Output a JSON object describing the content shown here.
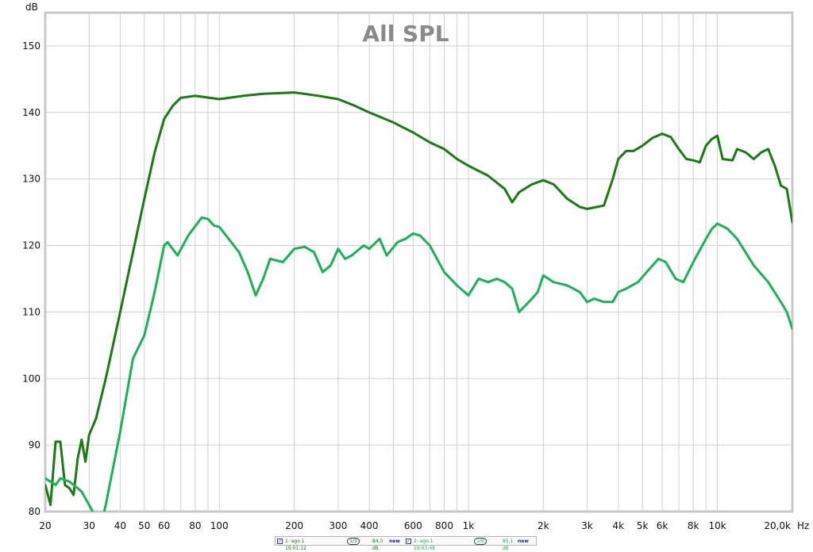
{
  "chart_data": {
    "type": "line",
    "title": "All SPL",
    "y_unit": "dB",
    "x_unit": "Hz",
    "x_scale": "log",
    "xlim": [
      20,
      20000
    ],
    "ylim": [
      80,
      155
    ],
    "grid": true,
    "y_ticks": [
      80,
      90,
      100,
      110,
      120,
      130,
      140,
      150
    ],
    "x_tick_labels": [
      {
        "value": 20,
        "label": "20"
      },
      {
        "value": 30,
        "label": "30"
      },
      {
        "value": 40,
        "label": "40"
      },
      {
        "value": 50,
        "label": "50"
      },
      {
        "value": 60,
        "label": "60"
      },
      {
        "value": 80,
        "label": "80"
      },
      {
        "value": 100,
        "label": "100"
      },
      {
        "value": 200,
        "label": "200"
      },
      {
        "value": 300,
        "label": "300"
      },
      {
        "value": 400,
        "label": "400"
      },
      {
        "value": 600,
        "label": "600"
      },
      {
        "value": 800,
        "label": "800"
      },
      {
        "value": 1000,
        "label": "1k"
      },
      {
        "value": 2000,
        "label": "2k"
      },
      {
        "value": 3000,
        "label": "3k"
      },
      {
        "value": 4000,
        "label": "4k"
      },
      {
        "value": 5000,
        "label": "5k"
      },
      {
        "value": 6000,
        "label": "6k"
      },
      {
        "value": 8000,
        "label": "8k"
      },
      {
        "value": 10000,
        "label": "10k"
      },
      {
        "value": 20000,
        "label": "20,0k"
      }
    ],
    "series": [
      {
        "color": "#1a7a14",
        "points": [
          [
            20,
            84
          ],
          [
            21,
            81
          ],
          [
            22,
            90.5
          ],
          [
            23,
            90.5
          ],
          [
            24,
            84
          ],
          [
            25,
            83.5
          ],
          [
            26,
            82.5
          ],
          [
            27,
            88
          ],
          [
            28,
            90.8
          ],
          [
            29,
            87.5
          ],
          [
            30,
            91.5
          ],
          [
            32,
            94
          ],
          [
            35,
            100
          ],
          [
            40,
            110
          ],
          [
            45,
            119
          ],
          [
            50,
            127
          ],
          [
            55,
            134
          ],
          [
            60,
            139
          ],
          [
            65,
            141
          ],
          [
            70,
            142.2
          ],
          [
            80,
            142.5
          ],
          [
            100,
            142
          ],
          [
            125,
            142.5
          ],
          [
            150,
            142.8
          ],
          [
            200,
            143
          ],
          [
            250,
            142.5
          ],
          [
            300,
            142
          ],
          [
            350,
            141
          ],
          [
            400,
            140
          ],
          [
            500,
            138.5
          ],
          [
            600,
            137
          ],
          [
            700,
            135.5
          ],
          [
            800,
            134.5
          ],
          [
            900,
            133
          ],
          [
            1000,
            132
          ],
          [
            1200,
            130.5
          ],
          [
            1400,
            128.5
          ],
          [
            1500,
            126.5
          ],
          [
            1600,
            128
          ],
          [
            1800,
            129.2
          ],
          [
            2000,
            129.8
          ],
          [
            2200,
            129.2
          ],
          [
            2500,
            127
          ],
          [
            2800,
            125.8
          ],
          [
            3000,
            125.5
          ],
          [
            3500,
            126
          ],
          [
            3800,
            130
          ],
          [
            4000,
            133
          ],
          [
            4300,
            134.2
          ],
          [
            4600,
            134.2
          ],
          [
            5000,
            135
          ],
          [
            5500,
            136.2
          ],
          [
            6000,
            136.8
          ],
          [
            6500,
            136.3
          ],
          [
            7000,
            134.5
          ],
          [
            7500,
            133
          ],
          [
            8000,
            132.8
          ],
          [
            8500,
            132.5
          ],
          [
            9000,
            135
          ],
          [
            9500,
            136
          ],
          [
            10000,
            136.5
          ],
          [
            10500,
            133
          ],
          [
            11500,
            132.8
          ],
          [
            12000,
            134.5
          ],
          [
            13000,
            134
          ],
          [
            14000,
            133
          ],
          [
            15000,
            134
          ],
          [
            16000,
            134.5
          ],
          [
            17000,
            132
          ],
          [
            18000,
            129
          ],
          [
            19000,
            128.5
          ],
          [
            20000,
            123.5
          ]
        ]
      },
      {
        "color": "#1cb05a",
        "points": [
          [
            20,
            85
          ],
          [
            21,
            84.5
          ],
          [
            22,
            84
          ],
          [
            23,
            85
          ],
          [
            25,
            84.5
          ],
          [
            26,
            84
          ],
          [
            27,
            83.5
          ],
          [
            28,
            83
          ],
          [
            30,
            81
          ],
          [
            31,
            80
          ],
          [
            33,
            78
          ],
          [
            34,
            79
          ],
          [
            35,
            81
          ],
          [
            40,
            92
          ],
          [
            45,
            103
          ],
          [
            50,
            106.5
          ],
          [
            55,
            113
          ],
          [
            60,
            120
          ],
          [
            62,
            120.5
          ],
          [
            68,
            118.5
          ],
          [
            75,
            121.5
          ],
          [
            85,
            124.2
          ],
          [
            90,
            124
          ],
          [
            95,
            123
          ],
          [
            100,
            122.8
          ],
          [
            120,
            119
          ],
          [
            130,
            116
          ],
          [
            140,
            112.5
          ],
          [
            150,
            115
          ],
          [
            160,
            118
          ],
          [
            180,
            117.5
          ],
          [
            200,
            119.5
          ],
          [
            220,
            119.8
          ],
          [
            240,
            119
          ],
          [
            260,
            116
          ],
          [
            280,
            117
          ],
          [
            300,
            119.5
          ],
          [
            320,
            118
          ],
          [
            340,
            118.5
          ],
          [
            380,
            120
          ],
          [
            400,
            119.5
          ],
          [
            440,
            121
          ],
          [
            470,
            118.5
          ],
          [
            520,
            120.5
          ],
          [
            560,
            121
          ],
          [
            600,
            121.8
          ],
          [
            640,
            121.5
          ],
          [
            700,
            120
          ],
          [
            800,
            116
          ],
          [
            900,
            114
          ],
          [
            1000,
            112.5
          ],
          [
            1100,
            115
          ],
          [
            1200,
            114.5
          ],
          [
            1300,
            115
          ],
          [
            1400,
            114.5
          ],
          [
            1500,
            113.5
          ],
          [
            1600,
            110
          ],
          [
            1800,
            112
          ],
          [
            1900,
            113
          ],
          [
            2000,
            115.5
          ],
          [
            2200,
            114.5
          ],
          [
            2500,
            114
          ],
          [
            2800,
            113
          ],
          [
            3000,
            111.5
          ],
          [
            3200,
            112
          ],
          [
            3500,
            111.5
          ],
          [
            3800,
            111.5
          ],
          [
            4000,
            113
          ],
          [
            4300,
            113.5
          ],
          [
            4800,
            114.5
          ],
          [
            5200,
            116
          ],
          [
            5800,
            118
          ],
          [
            6200,
            117.5
          ],
          [
            6800,
            115
          ],
          [
            7300,
            114.5
          ],
          [
            8000,
            117.5
          ],
          [
            9000,
            121
          ],
          [
            9500,
            122.5
          ],
          [
            10000,
            123.3
          ],
          [
            11000,
            122.5
          ],
          [
            12000,
            121
          ],
          [
            14000,
            117
          ],
          [
            16000,
            114.5
          ],
          [
            18000,
            111.5
          ],
          [
            19000,
            110
          ],
          [
            20000,
            107.5
          ]
        ]
      }
    ],
    "legend": [
      {
        "label": "1: ago 1 19:01:12",
        "symbol": "1/3",
        "value": "84,3 dB",
        "tag": "new",
        "color": "#1a7a14"
      },
      {
        "label": "2: ago 1 19:03:48",
        "symbol": "1/6",
        "value": "85,1 dB",
        "tag": "new",
        "color": "#1cb05a"
      }
    ],
    "colors": {
      "grid": "#d0d0d0",
      "frame": "#c8c8c8",
      "title": "#8a8a8a",
      "axis_text": "#111111"
    }
  }
}
